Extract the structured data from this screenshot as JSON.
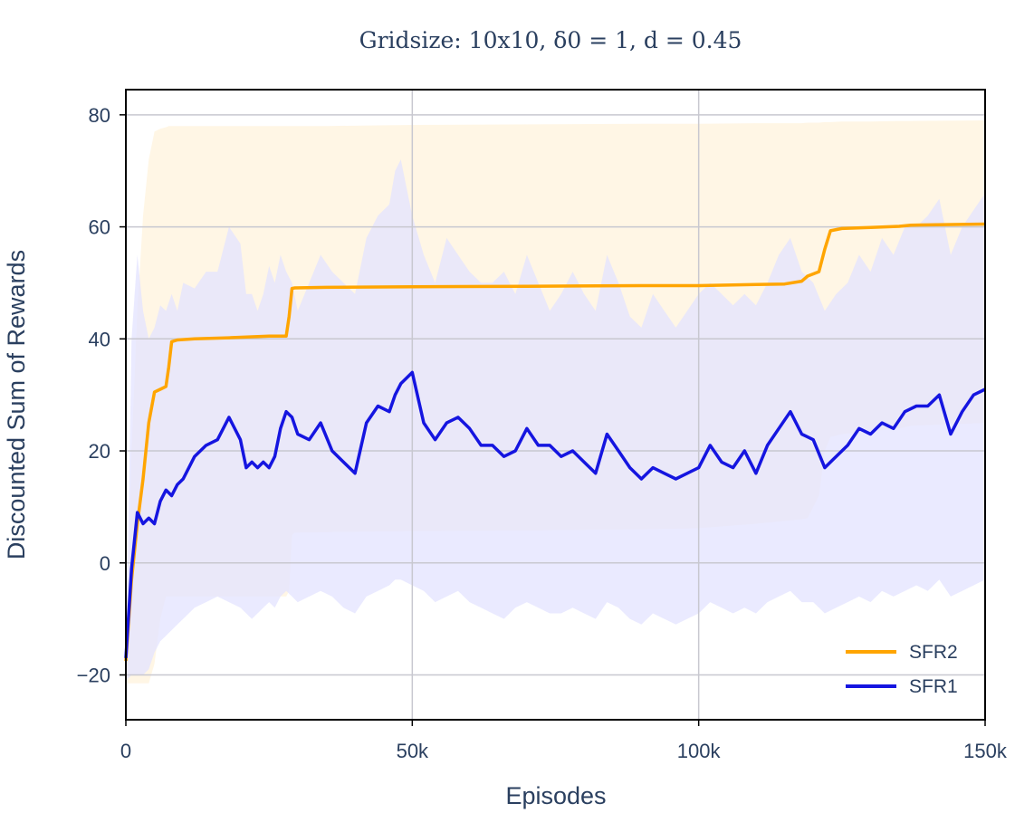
{
  "chart_data": {
    "type": "line",
    "title": "Gridsize: 10x10, δ0 = 1, d = 0.45",
    "xlabel": "Episodes",
    "ylabel": "Discounted Sum of Rewards",
    "xlim": [
      0,
      150000
    ],
    "ylim": [
      -28,
      84.5
    ],
    "x_ticks": [
      0,
      50000,
      100000,
      150000
    ],
    "x_tick_labels": [
      "0",
      "50k",
      "100k",
      "150k"
    ],
    "y_ticks": [
      -20,
      0,
      20,
      40,
      60,
      80
    ],
    "y_tick_labels": [
      "−20",
      "0",
      "20",
      "40",
      "60",
      "80"
    ],
    "grid": true,
    "legend_position": "bottom-right",
    "series": [
      {
        "name": "SFR2",
        "color": "#FFA500",
        "band_color": "#FFF3DC",
        "x": [
          0,
          1000,
          2000,
          3000,
          4000,
          5000,
          6000,
          7000,
          7500,
          8000,
          9000,
          12000,
          18000,
          25000,
          28000,
          28500,
          29000,
          29500,
          35000,
          50000,
          70000,
          90000,
          100000,
          110000,
          115000,
          118000,
          119000,
          121000,
          122000,
          123000,
          125000,
          130000,
          135000,
          137000,
          150000
        ],
        "values": [
          -17.5,
          -3,
          7,
          15,
          25,
          30.5,
          31,
          31.5,
          35,
          39.5,
          39.8,
          40,
          40.2,
          40.5,
          40.5,
          44,
          49,
          49.1,
          49.2,
          49.3,
          49.4,
          49.5,
          49.5,
          49.7,
          49.8,
          50.3,
          51.2,
          52,
          56,
          59.3,
          59.7,
          59.9,
          60.1,
          60.3,
          60.5
        ],
        "band_upper": [
          -20,
          20,
          45,
          62,
          72,
          77,
          77.5,
          77.8,
          78,
          78,
          78,
          78,
          78,
          78,
          78,
          78,
          78,
          78,
          78,
          78.2,
          78.3,
          78.4,
          78.4,
          78.5,
          78.5,
          78.5,
          78.6,
          78.6,
          78.7,
          78.7,
          78.8,
          78.8,
          78.9,
          78.9,
          79
        ],
        "band_lower": [
          -21.5,
          -21.5,
          -21.5,
          -21.5,
          -21.5,
          -18,
          -10,
          -6,
          -6,
          -6,
          -6,
          -6,
          -6,
          -6,
          -6,
          -5,
          5,
          5.4,
          5.5,
          5.7,
          5.8,
          6,
          6.2,
          7,
          7.5,
          7.8,
          8,
          12,
          20,
          22.5,
          23,
          23.5,
          24,
          24.5,
          25
        ]
      },
      {
        "name": "SFR1",
        "color": "#1515E0",
        "band_color": "#E3E3FF",
        "x": [
          0,
          1000,
          2000,
          3000,
          4000,
          5000,
          6000,
          7000,
          8000,
          9000,
          10000,
          12000,
          14000,
          16000,
          18000,
          20000,
          21000,
          22000,
          23000,
          24000,
          25000,
          26000,
          27000,
          28000,
          29000,
          30000,
          32000,
          34000,
          36000,
          38000,
          40000,
          42000,
          44000,
          46000,
          47000,
          48000,
          50000,
          52000,
          54000,
          56000,
          58000,
          60000,
          62000,
          64000,
          66000,
          68000,
          70000,
          72000,
          74000,
          76000,
          78000,
          80000,
          82000,
          84000,
          86000,
          88000,
          90000,
          92000,
          94000,
          96000,
          98000,
          100000,
          102000,
          104000,
          106000,
          108000,
          110000,
          112000,
          114000,
          116000,
          118000,
          120000,
          122000,
          124000,
          126000,
          128000,
          130000,
          132000,
          134000,
          136000,
          138000,
          140000,
          142000,
          144000,
          146000,
          148000,
          150000
        ],
        "values": [
          -17,
          -1,
          9,
          7,
          8,
          7,
          11,
          13,
          12,
          14,
          15,
          19,
          21,
          22,
          26,
          22,
          17,
          18,
          17,
          18,
          17,
          19,
          24,
          27,
          26,
          23,
          22,
          25,
          20,
          18,
          16,
          25,
          28,
          27,
          30,
          32,
          34,
          25,
          22,
          25,
          26,
          24,
          21,
          21,
          19,
          20,
          24,
          21,
          21,
          19,
          20,
          18,
          16,
          23,
          20,
          17,
          15,
          17,
          16,
          15,
          16,
          17,
          21,
          18,
          17,
          20,
          16,
          21,
          24,
          27,
          23,
          22,
          17,
          19,
          21,
          24,
          23,
          25,
          24,
          27,
          28,
          28,
          30,
          23,
          27,
          30,
          31
        ],
        "band_upper": [
          -20,
          40,
          55,
          45,
          40,
          42,
          46,
          45,
          48,
          45,
          50,
          49,
          52,
          52,
          60,
          57,
          48,
          48,
          45,
          48,
          53,
          50,
          55,
          52,
          50,
          45,
          50,
          55,
          52,
          50,
          48,
          58,
          62,
          64,
          70,
          72,
          62,
          55,
          50,
          58,
          55,
          52,
          50,
          50,
          52,
          48,
          55,
          50,
          45,
          48,
          52,
          48,
          45,
          55,
          50,
          44,
          42,
          48,
          45,
          42,
          45,
          48,
          50,
          48,
          46,
          48,
          46,
          50,
          55,
          58,
          52,
          50,
          45,
          48,
          50,
          55,
          52,
          58,
          55,
          60,
          60,
          62,
          65,
          55,
          60,
          63,
          66
        ],
        "band_lower": [
          -21,
          -20,
          -20,
          -20,
          -19,
          -16,
          -14,
          -13,
          -12,
          -11,
          -10,
          -8,
          -7,
          -6,
          -7,
          -8,
          -9,
          -10,
          -9,
          -8,
          -7,
          -8,
          -6,
          -5,
          -6,
          -7,
          -6,
          -5,
          -6,
          -8,
          -9,
          -6,
          -5,
          -4,
          -3,
          -3,
          -4,
          -5,
          -7,
          -6,
          -5,
          -7,
          -8,
          -9,
          -10,
          -8,
          -7,
          -8,
          -9,
          -9,
          -8,
          -9,
          -10,
          -7,
          -8,
          -10,
          -11,
          -9,
          -10,
          -11,
          -10,
          -9,
          -7,
          -8,
          -9,
          -8,
          -9,
          -7,
          -6,
          -5,
          -7,
          -7,
          -9,
          -8,
          -7,
          -6,
          -7,
          -5,
          -6,
          -5,
          -4,
          -5,
          -3,
          -6,
          -5,
          -4,
          -3
        ]
      }
    ]
  }
}
